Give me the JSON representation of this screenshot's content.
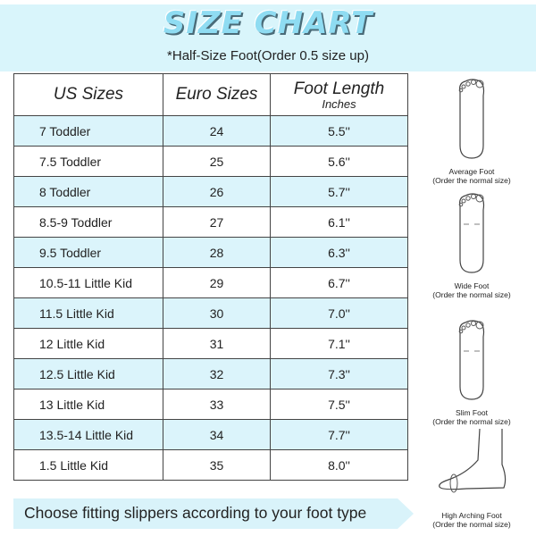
{
  "header": {
    "title": "SIZE CHART",
    "subtitle": "*Half-Size Foot(Order 0.5 size up)"
  },
  "table": {
    "columns": [
      "US Sizes",
      "Euro Sizes",
      "Foot Length"
    ],
    "foot_length_unit": "Inches",
    "rows": [
      {
        "us": "7  Toddler",
        "euro": "24",
        "length": "5.5''"
      },
      {
        "us": "7.5 Toddler",
        "euro": "25",
        "length": "5.6''"
      },
      {
        "us": "8 Toddler",
        "euro": "26",
        "length": "5.7''"
      },
      {
        "us": "8.5-9 Toddler",
        "euro": "27",
        "length": "6.1''"
      },
      {
        "us": "9.5 Toddler",
        "euro": "28",
        "length": "6.3''"
      },
      {
        "us": "10.5-11 Little Kid",
        "euro": "29",
        "length": "6.7''"
      },
      {
        "us": "11.5  Little Kid",
        "euro": "30",
        "length": "7.0''"
      },
      {
        "us": "12  Little Kid",
        "euro": "31",
        "length": "7.1''"
      },
      {
        "us": "12.5  Little Kid",
        "euro": "32",
        "length": "7.3''"
      },
      {
        "us": "13  Little Kid",
        "euro": "33",
        "length": "7.5''"
      },
      {
        "us": "13.5-14  Little Kid",
        "euro": "34",
        "length": "7.7''"
      },
      {
        "us": "1.5  Little Kid",
        "euro": "35",
        "length": "8.0''"
      }
    ]
  },
  "foot_types": [
    {
      "name": "Average Foot",
      "note": "(Order the normal size)",
      "icon": "average-foot-icon"
    },
    {
      "name": "Wide Foot",
      "note": "(Order the normal size)",
      "icon": "wide-foot-icon"
    },
    {
      "name": "Slim Foot",
      "note": "(Order the normal size)",
      "icon": "slim-foot-icon"
    },
    {
      "name": "High Arching Foot",
      "note": "(Order the normal size)",
      "icon": "high-arch-foot-icon"
    }
  ],
  "footer": {
    "banner": "Choose fitting slippers according to your foot type"
  },
  "colors": {
    "accent": "#d9f5fb",
    "title": "#8fdcf2"
  }
}
